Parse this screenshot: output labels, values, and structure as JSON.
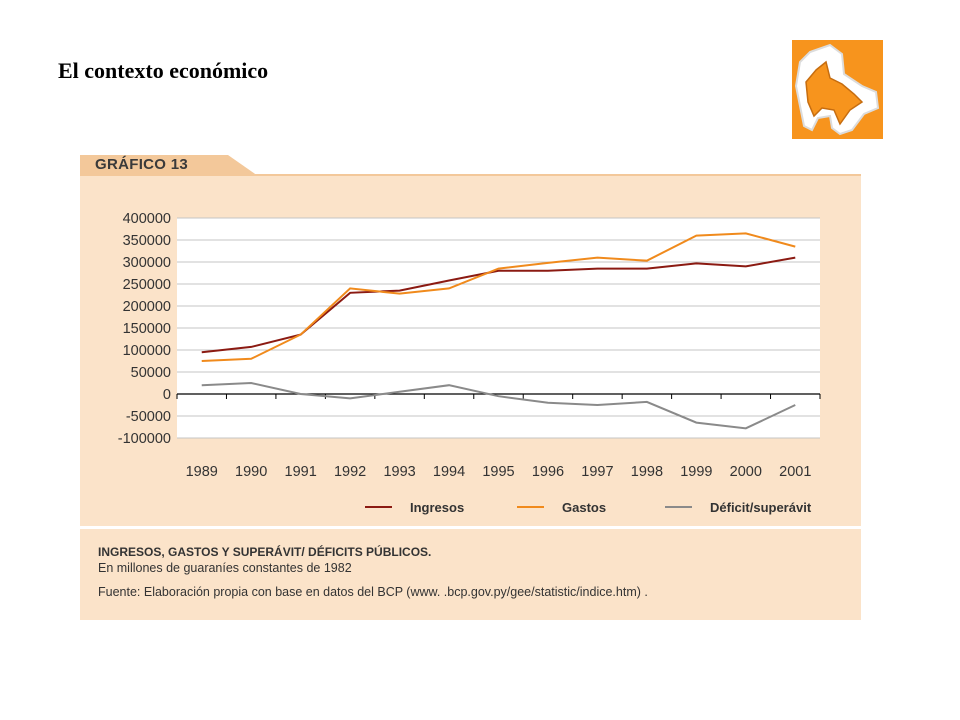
{
  "slide": {
    "title": "El contexto económico"
  },
  "figure": {
    "tab_label": "GRÁFICO 13",
    "caption_title": "INGRESOS, GASTOS Y SUPERÁVIT/ DÉFICITS PÚBLICOS.",
    "caption_subtitle": "En millones de guaraníes constantes de 1982",
    "caption_source": "Fuente: Elaboración propia con base en datos del BCP (www. .bcp.gov.py/gee/statistic/indice.htm) ."
  },
  "colors": {
    "ingresos": "#8b1a12",
    "gastos": "#f08a1c",
    "deficit": "#8a8a8a",
    "panel": "#fbe3c9",
    "logo_bg": "#f7941d"
  },
  "chart_data": {
    "type": "line",
    "title": "",
    "xlabel": "",
    "ylabel": "",
    "categories": [
      "1989",
      "1990",
      "1991",
      "1992",
      "1993",
      "1994",
      "1995",
      "1996",
      "1997",
      "1998",
      "1999",
      "2000",
      "2001"
    ],
    "ylim": [
      -100000,
      400000
    ],
    "yticks": [
      400000,
      350000,
      300000,
      250000,
      200000,
      150000,
      100000,
      50000,
      0,
      -50000,
      -100000
    ],
    "ytick_labels": [
      "400000",
      "350000",
      "300000",
      "250000",
      "200000",
      "150000",
      "100000",
      "50000",
      "0",
      "-50000",
      "-100000"
    ],
    "grid": true,
    "legend": "bottom",
    "series": [
      {
        "name": "Ingresos",
        "color": "#8b1a12",
        "values": [
          95000,
          107000,
          135000,
          230000,
          235000,
          258000,
          280000,
          280000,
          285000,
          285000,
          297000,
          290000,
          310000
        ]
      },
      {
        "name": "Gastos",
        "color": "#f08a1c",
        "values": [
          75000,
          80000,
          135000,
          240000,
          228000,
          240000,
          285000,
          298000,
          310000,
          303000,
          360000,
          365000,
          335000
        ]
      },
      {
        "name": "Déficit/superávit",
        "color": "#8a8a8a",
        "values": [
          20000,
          25000,
          0,
          -10000,
          5000,
          20000,
          -5000,
          -20000,
          -25000,
          -18000,
          -65000,
          -78000,
          -25000
        ]
      }
    ]
  }
}
